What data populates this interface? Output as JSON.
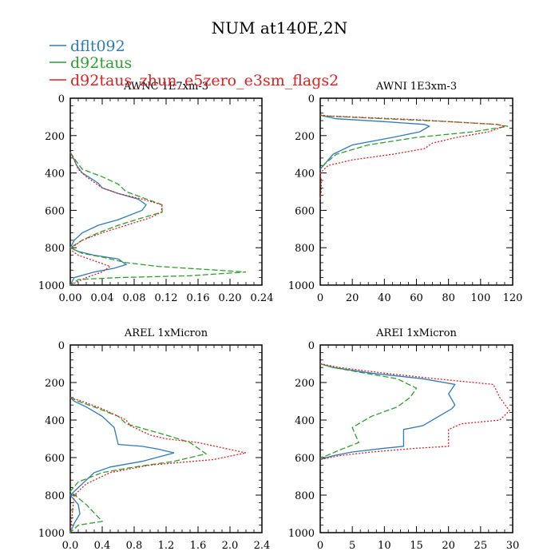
{
  "title": "NUM at140E,2N",
  "legend": [
    {
      "name": "dflt092",
      "color": "#2f7ab8",
      "dash": ""
    },
    {
      "name": "d92taus",
      "color": "#2e9e2e",
      "dash": "7,3"
    },
    {
      "name": "d92taus_zhun_e5zero_e3sm_flags2",
      "color": "#e02020",
      "dash": "2,2"
    }
  ],
  "chart_data": [
    {
      "type": "line",
      "title": "AWNC  1E7xm-3",
      "xlim": [
        0,
        0.24
      ],
      "ylim": [
        1000,
        0
      ],
      "xticks": [
        0,
        0.04,
        0.08,
        0.12,
        0.16,
        0.2,
        0.24
      ],
      "xtick_labels": [
        "0.00",
        "0.04",
        "0.08",
        "0.12",
        "0.16",
        "0.20",
        "0.24"
      ],
      "yticks": [
        0,
        200,
        400,
        600,
        800,
        1000
      ],
      "ytick_labels": [
        "0",
        "200",
        "400",
        "600",
        "800",
        "1000"
      ],
      "series": [
        {
          "name": "dflt092",
          "x": [
            0,
            0.005,
            0.008,
            0.015,
            0.03,
            0.035,
            0.04,
            0.06,
            0.085,
            0.095,
            0.09,
            0.06,
            0.035,
            0.015,
            0.005,
            0,
            0.01,
            0.03,
            0.06,
            0.07,
            0.055,
            0.03,
            0.005,
            0
          ],
          "y": [
            290,
            330,
            360,
            400,
            440,
            455,
            480,
            510,
            540,
            570,
            600,
            650,
            680,
            720,
            760,
            800,
            820,
            840,
            860,
            890,
            910,
            930,
            960,
            1000
          ]
        },
        {
          "name": "d92taus",
          "x": [
            0,
            0.008,
            0.015,
            0.04,
            0.06,
            0.07,
            0.115,
            0.115,
            0.09,
            0.06,
            0.035,
            0.015,
            0,
            0.015,
            0.04,
            0.07,
            0.11,
            0.22,
            0.15,
            0.06,
            0.01,
            0
          ],
          "y": [
            290,
            340,
            380,
            420,
            460,
            500,
            570,
            610,
            640,
            680,
            720,
            760,
            800,
            830,
            850,
            880,
            900,
            930,
            950,
            960,
            970,
            1000
          ]
        },
        {
          "name": "d92taus_zhun_e5zero_e3sm_flags2",
          "x": [
            0,
            0.005,
            0.01,
            0.02,
            0.04,
            0.06,
            0.09,
            0.115,
            0.114,
            0.1,
            0.07,
            0.04,
            0.015,
            0.005,
            0,
            0.01,
            0.03,
            0.05,
            0.04,
            0.02,
            0
          ],
          "y": [
            290,
            330,
            380,
            420,
            480,
            510,
            540,
            570,
            610,
            640,
            680,
            720,
            760,
            790,
            810,
            840,
            870,
            900,
            930,
            960,
            1000
          ]
        }
      ]
    },
    {
      "type": "line",
      "title": "AWNI  1E3xm-3",
      "xlim": [
        0,
        120
      ],
      "ylim": [
        1000,
        0
      ],
      "xticks": [
        0,
        20,
        40,
        60,
        80,
        100,
        120
      ],
      "xtick_labels": [
        "0",
        "20",
        "40",
        "60",
        "80",
        "100",
        "120"
      ],
      "yticks": [
        0,
        200,
        400,
        600,
        800,
        1000
      ],
      "ytick_labels": [
        "0",
        "200",
        "400",
        "600",
        "800",
        "1000"
      ],
      "series": [
        {
          "name": "dflt092",
          "x": [
            0,
            2,
            10,
            40,
            65,
            68,
            62,
            45,
            20,
            8,
            3,
            0
          ],
          "y": [
            90,
            95,
            110,
            125,
            140,
            150,
            180,
            210,
            250,
            300,
            350,
            380
          ]
        },
        {
          "name": "d92taus",
          "x": [
            0,
            3,
            40,
            80,
            110,
            117,
            95,
            60,
            30,
            10,
            3,
            0
          ],
          "y": [
            90,
            95,
            110,
            125,
            140,
            150,
            180,
            210,
            250,
            300,
            350,
            380
          ]
        },
        {
          "name": "d92taus_zhun_e5zero_e3sm_flags2",
          "x": [
            0,
            5,
            60,
            110,
            115,
            105,
            85,
            70,
            65,
            45,
            20,
            5,
            0,
            0.8,
            0.5,
            0
          ],
          "y": [
            90,
            95,
            115,
            140,
            150,
            180,
            210,
            240,
            270,
            300,
            330,
            360,
            400,
            450,
            510,
            540
          ]
        }
      ]
    },
    {
      "type": "line",
      "title": "AREL  1xMicron",
      "xlim": [
        0,
        2.4
      ],
      "ylim": [
        1000,
        0
      ],
      "xticks": [
        0,
        0.4,
        0.8,
        1.2,
        1.6,
        2.0,
        2.4
      ],
      "xtick_labels": [
        "0.0",
        "0.4",
        "0.8",
        "1.2",
        "1.6",
        "2.0",
        "2.4"
      ],
      "yticks": [
        0,
        200,
        400,
        600,
        800,
        1000
      ],
      "ytick_labels": [
        "0",
        "200",
        "400",
        "600",
        "800",
        "1000"
      ],
      "series": [
        {
          "name": "dflt092",
          "x": [
            0,
            0.05,
            0.2,
            0.4,
            0.55,
            0.6,
            0.9,
            1.1,
            1.3,
            0.9,
            0.5,
            0.3,
            0.1,
            0,
            0.1,
            0.12,
            0.05,
            0
          ],
          "y": [
            280,
            300,
            330,
            380,
            440,
            530,
            540,
            555,
            575,
            620,
            650,
            680,
            760,
            800,
            850,
            900,
            950,
            1000
          ]
        },
        {
          "name": "d92taus",
          "x": [
            0,
            0.1,
            0.3,
            0.6,
            0.7,
            1.2,
            1.5,
            1.7,
            1.3,
            0.8,
            0.4,
            0.1,
            0,
            0.2,
            0.4,
            0.1,
            0
          ],
          "y": [
            280,
            300,
            330,
            380,
            420,
            480,
            520,
            580,
            620,
            650,
            680,
            730,
            780,
            850,
            940,
            960,
            1000
          ]
        },
        {
          "name": "d92taus_zhun_e5zero_e3sm_flags2",
          "x": [
            0,
            0.15,
            0.4,
            0.7,
            0.75,
            1.0,
            1.2,
            1.6,
            2.2,
            1.8,
            1.0,
            0.5,
            0.2,
            0.05,
            0
          ],
          "y": [
            280,
            300,
            340,
            400,
            430,
            480,
            500,
            520,
            575,
            610,
            640,
            680,
            740,
            800,
            1000
          ]
        }
      ]
    },
    {
      "type": "line",
      "title": "AREI  1xMicron",
      "xlim": [
        0,
        30
      ],
      "ylim": [
        1000,
        0
      ],
      "xticks": [
        0,
        5,
        10,
        15,
        20,
        25,
        30
      ],
      "xtick_labels": [
        "0",
        "5",
        "10",
        "15",
        "20",
        "25",
        "30"
      ],
      "yticks": [
        0,
        200,
        400,
        600,
        800,
        1000
      ],
      "ytick_labels": [
        "0",
        "200",
        "400",
        "600",
        "800",
        "1000"
      ],
      "series": [
        {
          "name": "dflt092",
          "x": [
            0,
            2,
            8,
            16,
            21,
            20,
            21,
            20.5,
            18,
            16,
            13,
            13,
            10,
            5,
            2,
            0
          ],
          "y": [
            100,
            120,
            150,
            180,
            210,
            260,
            320,
            340,
            390,
            430,
            450,
            540,
            550,
            570,
            590,
            610
          ]
        },
        {
          "name": "d92taus",
          "x": [
            0,
            2,
            7,
            12,
            15,
            14,
            12,
            8,
            6,
            5,
            6,
            3,
            1,
            0
          ],
          "y": [
            100,
            120,
            150,
            180,
            230,
            280,
            330,
            380,
            420,
            440,
            520,
            560,
            590,
            600
          ]
        },
        {
          "name": "d92taus_zhun_e5zero_e3sm_flags2",
          "x": [
            0,
            3,
            10,
            18,
            27,
            28,
            29.5,
            28,
            22,
            20,
            20,
            15,
            8,
            3,
            0
          ],
          "y": [
            100,
            120,
            150,
            180,
            210,
            280,
            350,
            400,
            420,
            450,
            540,
            550,
            570,
            590,
            610
          ]
        }
      ]
    }
  ]
}
